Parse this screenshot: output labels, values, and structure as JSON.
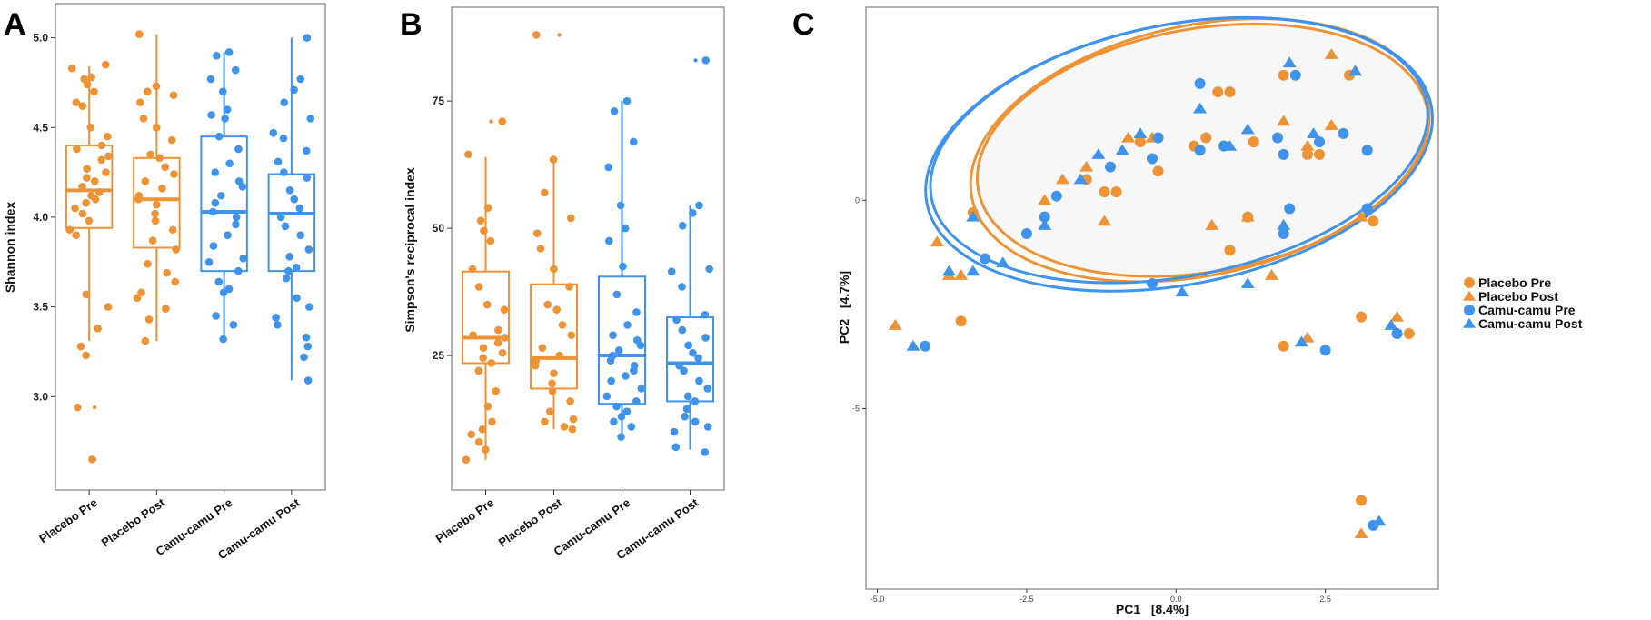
{
  "colors": {
    "placebo": "#EE9236",
    "camu": "#3F93EA",
    "axis": "#333333",
    "panel_border": "#7f7f7f",
    "ellipse_fill": "#f7f7f7"
  },
  "chart_data": [
    {
      "panel": "A",
      "type": "box",
      "ylabel": "Shannon index",
      "ylim": [
        2.52,
        5.15
      ],
      "yticks": [
        3.0,
        3.5,
        4.0,
        4.5,
        5.0
      ],
      "ytick_labels": [
        "3.0",
        "3.5",
        "4.0",
        "4.5",
        "5.0"
      ],
      "categories": [
        "Placebo Pre",
        "Placebo Post",
        "Camu-camu Pre",
        "Camu-camu Post"
      ],
      "groups": [
        {
          "name": "Placebo Pre",
          "color": "placebo",
          "q1": 3.94,
          "median": 4.15,
          "q3": 4.4,
          "whisker_low": 3.31,
          "whisker_high": 4.84,
          "outliers": [
            2.94,
            2.65
          ],
          "points": [
            4.85,
            4.83,
            4.78,
            4.77,
            4.74,
            4.7,
            4.64,
            4.62,
            4.5,
            4.45,
            4.4,
            4.38,
            4.34,
            4.32,
            4.27,
            4.25,
            4.22,
            4.2,
            4.17,
            4.14,
            4.12,
            4.1,
            4.08,
            4.05,
            4.02,
            3.98,
            3.93,
            3.9,
            3.57,
            3.5,
            3.38,
            3.28,
            3.23,
            2.94,
            2.65
          ]
        },
        {
          "name": "Placebo Post",
          "color": "placebo",
          "q1": 3.83,
          "median": 4.1,
          "q3": 4.33,
          "whisker_low": 3.31,
          "whisker_high": 5.02,
          "outliers": [],
          "points": [
            5.02,
            4.73,
            4.7,
            4.68,
            4.64,
            4.55,
            4.5,
            4.43,
            4.35,
            4.33,
            4.28,
            4.24,
            4.2,
            4.16,
            4.12,
            4.1,
            4.07,
            4.02,
            3.98,
            3.93,
            3.87,
            3.82,
            3.74,
            3.69,
            3.64,
            3.58,
            3.55,
            3.49,
            3.43,
            3.31
          ]
        },
        {
          "name": "Camu-camu Pre",
          "color": "camu",
          "q1": 3.7,
          "median": 4.03,
          "q3": 4.45,
          "whisker_low": 3.32,
          "whisker_high": 4.92,
          "outliers": [],
          "points": [
            4.92,
            4.9,
            4.82,
            4.77,
            4.7,
            4.6,
            4.57,
            4.55,
            4.45,
            4.38,
            4.3,
            4.25,
            4.2,
            4.17,
            4.12,
            4.08,
            4.03,
            4.0,
            3.96,
            3.9,
            3.84,
            3.77,
            3.75,
            3.7,
            3.64,
            3.6,
            3.58,
            3.45,
            3.4,
            3.32
          ]
        },
        {
          "name": "Camu-camu Post",
          "color": "camu",
          "q1": 3.7,
          "median": 4.02,
          "q3": 4.24,
          "whisker_low": 3.09,
          "whisker_high": 5.0,
          "outliers": [],
          "points": [
            5.0,
            4.77,
            4.71,
            4.64,
            4.55,
            4.47,
            4.44,
            4.37,
            4.31,
            4.25,
            4.22,
            4.15,
            4.1,
            4.05,
            4.0,
            3.95,
            3.9,
            3.82,
            3.78,
            3.72,
            3.7,
            3.66,
            3.55,
            3.5,
            3.44,
            3.4,
            3.33,
            3.28,
            3.22,
            3.09
          ]
        }
      ]
    },
    {
      "panel": "B",
      "type": "box",
      "ylabel": "Simpson's reciprocal index",
      "ylim": [
        0,
        92
      ],
      "yticks": [
        25,
        50,
        75
      ],
      "ytick_labels": [
        "25",
        "50",
        "75"
      ],
      "categories": [
        "Placebo Pre",
        "Placebo Post",
        "Camu-camu Pre",
        "Camu-camu Post"
      ],
      "groups": [
        {
          "name": "Placebo Pre",
          "color": "placebo",
          "q1": 23.5,
          "median": 28.5,
          "q3": 41.5,
          "whisker_low": 4.5,
          "whisker_high": 64.0,
          "outliers": [
            71.0
          ],
          "points": [
            71.0,
            64.5,
            54.0,
            51.5,
            49.5,
            47.5,
            42.0,
            38.5,
            35.0,
            34.0,
            30.0,
            29.0,
            28.5,
            27.5,
            26.5,
            25.5,
            24.5,
            23.5,
            22.0,
            18.0,
            15.0,
            12.0,
            10.5,
            9.5,
            8.0,
            6.5,
            4.5
          ]
        },
        {
          "name": "Placebo Post",
          "color": "placebo",
          "q1": 18.5,
          "median": 24.5,
          "q3": 39.0,
          "whisker_low": 10.5,
          "whisker_high": 63.0,
          "outliers": [
            88.0
          ],
          "points": [
            88.0,
            63.5,
            57.0,
            52.0,
            49.0,
            46.0,
            42.0,
            38.5,
            35.0,
            34.0,
            31.0,
            29.0,
            26.5,
            25.0,
            24.0,
            23.0,
            21.5,
            19.5,
            18.0,
            16.0,
            14.0,
            12.5,
            12.0,
            11.0,
            10.5
          ]
        },
        {
          "name": "Camu-camu Pre",
          "color": "camu",
          "q1": 15.5,
          "median": 25.0,
          "q3": 40.5,
          "whisker_low": 9.0,
          "whisker_high": 75.0,
          "outliers": [],
          "points": [
            75.0,
            73.0,
            67.0,
            62.0,
            54.5,
            50.0,
            47.5,
            42.5,
            37.0,
            33.5,
            31.0,
            29.0,
            28.0,
            27.0,
            26.0,
            25.0,
            24.0,
            23.0,
            22.0,
            21.0,
            20.0,
            18.5,
            17.0,
            16.0,
            15.0,
            14.0,
            13.0,
            12.0,
            11.0,
            9.0
          ]
        },
        {
          "name": "Camu-camu Post",
          "color": "camu",
          "q1": 16.0,
          "median": 23.5,
          "q3": 32.5,
          "whisker_low": 6.5,
          "whisker_high": 54.5,
          "outliers": [
            83.0
          ],
          "points": [
            83.0,
            54.5,
            53.0,
            50.5,
            42.0,
            41.5,
            38.5,
            33.0,
            32.0,
            30.0,
            28.5,
            27.0,
            25.5,
            24.5,
            23.0,
            22.0,
            20.0,
            18.5,
            17.0,
            16.0,
            14.5,
            13.0,
            12.0,
            11.0,
            10.0,
            7.0,
            6.0
          ]
        }
      ]
    },
    {
      "panel": "C",
      "type": "scatter",
      "xlabel": "PC1   [8.4%]",
      "ylabel": "PC2   [4.7%]",
      "xlim": [
        -5.1,
        4.3
      ],
      "ylim": [
        -9.2,
        4.5
      ],
      "xticks": [
        -5.0,
        -2.5,
        0.0,
        2.5
      ],
      "xtick_labels": [
        "-5.0",
        "-2.5",
        "0.0",
        "2.5"
      ],
      "yticks": [
        -5,
        0
      ],
      "ytick_labels": [
        "-5",
        "0"
      ],
      "legend": [
        {
          "label": "Placebo Pre",
          "shape": "circle",
          "color": "placebo"
        },
        {
          "label": "Placebo Post",
          "shape": "triangle",
          "color": "placebo"
        },
        {
          "label": "Camu-camu Pre",
          "shape": "circle",
          "color": "camu"
        },
        {
          "label": "Camu-camu Post",
          "shape": "triangle",
          "color": "camu"
        }
      ],
      "ellipses": [
        {
          "group": "Placebo Pre",
          "color": "placebo",
          "cx": 0.45,
          "cy": 1.2,
          "rx": 3.82,
          "ry": 2.92,
          "angle": 10
        },
        {
          "group": "Placebo Post",
          "color": "placebo",
          "cx": 0.4,
          "cy": 1.2,
          "rx": 3.9,
          "ry": 3.0,
          "angle": 12
        },
        {
          "group": "Camu-camu Pre",
          "color": "camu",
          "cx": 0.05,
          "cy": 1.2,
          "rx": 4.22,
          "ry": 3.02,
          "angle": 11
        },
        {
          "group": "Camu-camu Post",
          "color": "camu",
          "cx": 0.05,
          "cy": 1.1,
          "rx": 4.3,
          "ry": 3.12,
          "angle": 11
        }
      ],
      "series": [
        {
          "name": "Placebo Pre",
          "shape": "circle",
          "color": "placebo",
          "points": [
            [
              -3.4,
              -0.3
            ],
            [
              -3.6,
              -2.9
            ],
            [
              -1.5,
              0.5
            ],
            [
              -1.2,
              0.2
            ],
            [
              -1.0,
              0.2
            ],
            [
              -0.6,
              1.4
            ],
            [
              -0.3,
              0.7
            ],
            [
              0.3,
              1.3
            ],
            [
              0.5,
              1.5
            ],
            [
              0.7,
              2.6
            ],
            [
              0.9,
              2.6
            ],
            [
              1.2,
              -0.4
            ],
            [
              1.3,
              1.4
            ],
            [
              1.8,
              3.0
            ],
            [
              2.2,
              1.1
            ],
            [
              2.4,
              1.1
            ],
            [
              2.9,
              3.0
            ],
            [
              3.3,
              -0.5
            ],
            [
              3.1,
              -2.8
            ],
            [
              1.8,
              -3.5
            ],
            [
              0.9,
              -1.2
            ],
            [
              3.9,
              -3.2
            ],
            [
              3.1,
              -7.2
            ]
          ]
        },
        {
          "name": "Placebo Post",
          "shape": "triangle",
          "color": "placebo",
          "points": [
            [
              -4.7,
              -3.0
            ],
            [
              -4.0,
              -1.0
            ],
            [
              -3.8,
              -1.8
            ],
            [
              -3.6,
              -1.8
            ],
            [
              -2.2,
              0.0
            ],
            [
              -1.9,
              0.5
            ],
            [
              -1.5,
              0.8
            ],
            [
              -1.2,
              -0.5
            ],
            [
              -0.8,
              1.5
            ],
            [
              -0.4,
              1.5
            ],
            [
              0.6,
              -0.6
            ],
            [
              1.2,
              -0.4
            ],
            [
              1.6,
              -1.8
            ],
            [
              1.8,
              1.9
            ],
            [
              2.2,
              1.3
            ],
            [
              2.6,
              1.8
            ],
            [
              2.6,
              3.5
            ],
            [
              3.1,
              -0.4
            ],
            [
              3.7,
              -2.8
            ],
            [
              2.2,
              -3.3
            ],
            [
              3.1,
              -8.0
            ]
          ]
        },
        {
          "name": "Camu-camu Pre",
          "shape": "circle",
          "color": "camu",
          "points": [
            [
              -4.2,
              -3.5
            ],
            [
              -3.2,
              -1.4
            ],
            [
              -2.5,
              -0.8
            ],
            [
              -2.2,
              -0.4
            ],
            [
              -2.0,
              0.1
            ],
            [
              -1.1,
              0.8
            ],
            [
              -0.4,
              -2.0
            ],
            [
              -0.4,
              1.0
            ],
            [
              -0.3,
              1.5
            ],
            [
              0.4,
              1.2
            ],
            [
              0.4,
              2.8
            ],
            [
              0.8,
              1.3
            ],
            [
              1.7,
              1.5
            ],
            [
              1.8,
              1.1
            ],
            [
              1.8,
              -0.8
            ],
            [
              1.9,
              -0.2
            ],
            [
              2.0,
              3.0
            ],
            [
              2.4,
              1.4
            ],
            [
              2.8,
              1.6
            ],
            [
              3.2,
              1.2
            ],
            [
              3.2,
              -0.2
            ],
            [
              2.5,
              -3.6
            ],
            [
              3.7,
              -3.2
            ],
            [
              3.3,
              -7.8
            ]
          ]
        },
        {
          "name": "Camu-camu Post",
          "shape": "triangle",
          "color": "camu",
          "points": [
            [
              -4.4,
              -3.5
            ],
            [
              -3.8,
              -1.7
            ],
            [
              -3.4,
              -0.4
            ],
            [
              -3.4,
              -1.7
            ],
            [
              -2.9,
              -1.5
            ],
            [
              -2.2,
              -0.6
            ],
            [
              -1.6,
              0.5
            ],
            [
              -1.3,
              1.1
            ],
            [
              -0.9,
              1.2
            ],
            [
              -0.6,
              1.6
            ],
            [
              0.1,
              -2.2
            ],
            [
              0.4,
              2.2
            ],
            [
              0.9,
              1.3
            ],
            [
              1.2,
              -2.0
            ],
            [
              1.2,
              1.7
            ],
            [
              1.8,
              -0.6
            ],
            [
              1.9,
              3.3
            ],
            [
              2.3,
              1.6
            ],
            [
              3.0,
              3.1
            ],
            [
              3.6,
              -3.0
            ],
            [
              2.1,
              -3.4
            ],
            [
              3.4,
              -7.7
            ]
          ]
        }
      ]
    }
  ]
}
